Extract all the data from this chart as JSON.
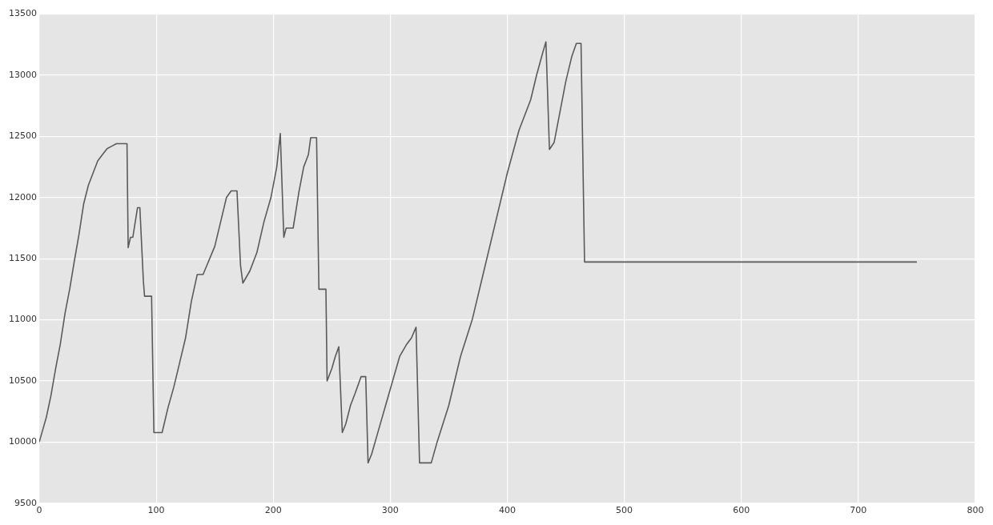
{
  "chart_data": {
    "type": "line",
    "x": [
      0,
      3,
      6,
      10,
      14,
      18,
      22,
      26,
      30,
      34,
      38,
      42,
      46,
      50,
      54,
      58,
      62,
      66,
      75,
      76,
      78,
      80,
      84,
      86,
      89,
      90,
      96,
      98,
      105,
      110,
      115,
      120,
      125,
      130,
      135,
      140,
      150,
      155,
      160,
      164,
      167,
      169,
      172,
      174,
      180,
      186,
      192,
      198,
      203,
      206,
      209,
      211,
      217,
      222,
      226,
      230,
      232,
      237,
      239,
      245,
      246,
      250,
      253,
      256,
      259,
      262,
      266,
      270,
      275,
      279,
      281,
      284,
      290,
      296,
      302,
      308,
      314,
      318,
      322,
      325,
      335,
      340,
      350,
      360,
      370,
      380,
      390,
      400,
      410,
      420,
      425,
      430,
      433,
      436,
      440,
      445,
      450,
      455,
      459,
      463,
      466,
      750
    ],
    "series": [
      {
        "color": "#5a5a5a",
        "values": [
          10000,
          10100,
          10200,
          10380,
          10600,
          10800,
          11050,
          11250,
          11480,
          11700,
          11950,
          12100,
          12200,
          12300,
          12350,
          12400,
          12420,
          12440,
          12440,
          11590,
          11675,
          11675,
          11917,
          11917,
          11317,
          11193,
          11193,
          10078,
          10078,
          10280,
          10450,
          10650,
          10850,
          11150,
          11370,
          11370,
          11600,
          11800,
          12000,
          12054,
          12054,
          12054,
          11447,
          11300,
          11400,
          11550,
          11800,
          12000,
          12250,
          12523,
          11675,
          11750,
          11750,
          12050,
          12250,
          12350,
          12490,
          12490,
          11250,
          11250,
          10500,
          10600,
          10700,
          10780,
          10078,
          10150,
          10300,
          10400,
          10535,
          10535,
          9830,
          9900,
          10100,
          10300,
          10500,
          10700,
          10800,
          10850,
          10939,
          9830,
          9830,
          10000,
          10300,
          10700,
          11000,
          11400,
          11800,
          12200,
          12550,
          12800,
          13000,
          13175,
          13273,
          12393,
          12450,
          12700,
          12950,
          13150,
          13260,
          13260,
          11473,
          11473
        ]
      }
    ],
    "xlim": [
      0,
      800
    ],
    "xticks": [
      0,
      100,
      200,
      300,
      400,
      500,
      600,
      700,
      800
    ],
    "ylim": [
      9500,
      13500
    ],
    "yticks": [
      9500,
      10000,
      10500,
      11000,
      11500,
      12000,
      12500,
      13000,
      13500
    ],
    "grid": true,
    "legend": false,
    "marker": "none",
    "line_style": "solid"
  }
}
